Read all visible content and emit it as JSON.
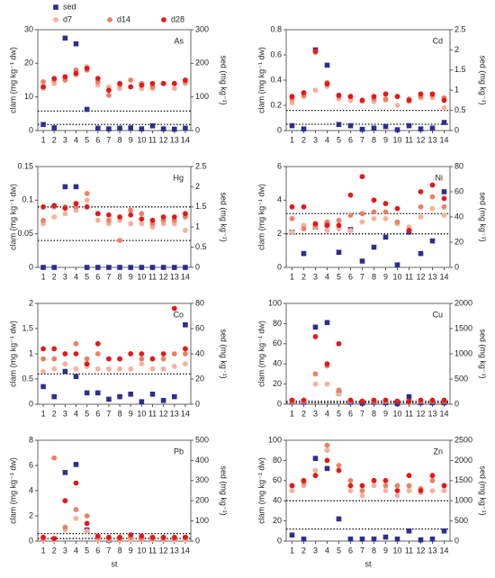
{
  "chart_data": [
    {
      "type": "scatter",
      "label": "As",
      "ylabel": "clam (mg kg⁻¹ dw)",
      "y2label": "sed (mg kg⁻¹)",
      "x": [
        1,
        2,
        3,
        4,
        5,
        6,
        7,
        8,
        9,
        10,
        11,
        12,
        13,
        14
      ],
      "xlim": [
        0.5,
        14.5
      ],
      "xticks": [
        1,
        2,
        3,
        4,
        5,
        6,
        7,
        8,
        9,
        10,
        11,
        12,
        13,
        14
      ],
      "ylim": [
        0,
        30
      ],
      "yticks": [
        0,
        10,
        20,
        30
      ],
      "y2lim": [
        0,
        300
      ],
      "y2ticks": [
        0,
        100,
        200,
        300
      ],
      "series": [
        {
          "name": "sed",
          "color": "#2b2f8f",
          "marker": "square",
          "axis": "y2",
          "values": [
            18,
            8,
            275,
            258,
            63,
            7,
            5,
            7,
            8,
            5,
            14,
            5,
            4,
            7
          ]
        },
        {
          "name": "d7",
          "color": "#f7b09a",
          "marker": "circle",
          "values": [
            12.5,
            14,
            15.5,
            16.5,
            19,
            13.5,
            13,
            12.5,
            13,
            12.5,
            12.5,
            14,
            12.5,
            14
          ]
        },
        {
          "name": "d14",
          "color": "#ef7f62",
          "marker": "circle",
          "values": [
            14.5,
            15,
            15,
            18,
            18,
            14.5,
            10.5,
            13.5,
            15,
            14,
            13,
            14,
            14,
            14.5
          ]
        },
        {
          "name": "d28",
          "color": "#e3191c",
          "marker": "circle",
          "values": [
            13,
            15.5,
            16,
            17,
            18.5,
            15.5,
            12,
            14,
            13,
            13.5,
            14,
            14,
            14,
            15
          ]
        }
      ],
      "hlines": [
        5.8,
        1.8
      ]
    },
    {
      "type": "scatter",
      "label": "Cd",
      "ylabel": "clam (mg kg⁻¹ dw)",
      "y2label": "sed (mg kg⁻¹)",
      "x": [
        1,
        2,
        3,
        4,
        5,
        6,
        7,
        8,
        9,
        10,
        11,
        12,
        13,
        14
      ],
      "xlim": [
        0.5,
        14.5
      ],
      "xticks": [
        1,
        2,
        3,
        4,
        5,
        6,
        7,
        8,
        9,
        10,
        11,
        12,
        13,
        14
      ],
      "ylim": [
        0,
        0.8
      ],
      "yticks": [
        0,
        0.2,
        0.4,
        0.6,
        0.8
      ],
      "y2lim": [
        0,
        2.5
      ],
      "y2ticks": [
        0,
        0.5,
        1,
        1.5,
        2,
        2.5
      ],
      "series": [
        {
          "color": "#2b2f8f",
          "marker": "square",
          "axis": "y2",
          "values": [
            0.12,
            0.04,
            2.0,
            1.62,
            0.15,
            0.12,
            0.03,
            0.06,
            0.1,
            0.02,
            0.12,
            0.04,
            0.06,
            0.2
          ]
        },
        {
          "color": "#f7b09a",
          "marker": "circle",
          "values": [
            0.22,
            0.27,
            0.32,
            0.35,
            0.25,
            0.24,
            0.23,
            0.23,
            0.24,
            0.2,
            0.23,
            0.26,
            0.26,
            0.18
          ]
        },
        {
          "color": "#ef7f62",
          "marker": "circle",
          "values": [
            0.25,
            0.28,
            0.62,
            0.38,
            0.27,
            0.27,
            0.24,
            0.25,
            0.25,
            0.27,
            0.25,
            0.27,
            0.28,
            0.26
          ]
        },
        {
          "color": "#e3191c",
          "marker": "circle",
          "values": [
            0.27,
            0.3,
            0.63,
            0.37,
            0.28,
            0.27,
            0.24,
            0.27,
            0.29,
            0.27,
            0.24,
            0.29,
            0.29,
            0.24
          ]
        }
      ],
      "hlines": [
        0.16,
        0.05
      ]
    },
    {
      "type": "scatter",
      "label": "Hg",
      "ylabel": "clam (mg kg⁻¹ dw)",
      "y2label": "sed (mg kg⁻¹)",
      "x": [
        1,
        2,
        3,
        4,
        5,
        6,
        7,
        8,
        9,
        10,
        11,
        12,
        13,
        14
      ],
      "xlim": [
        0.5,
        14.5
      ],
      "xticks": [
        1,
        2,
        3,
        4,
        5,
        6,
        7,
        8,
        9,
        10,
        11,
        12,
        13,
        14
      ],
      "ylim": [
        0,
        0.15
      ],
      "yticks": [
        0,
        0.05,
        0.1,
        0.15
      ],
      "y2lim": [
        0,
        2.5
      ],
      "y2ticks": [
        0,
        0.5,
        1,
        1.5,
        2,
        2.5
      ],
      "series": [
        {
          "color": "#2b2f8f",
          "marker": "square",
          "axis": "y2",
          "values": [
            0,
            0,
            2.0,
            2.0,
            0,
            0,
            0,
            0,
            0,
            0,
            0,
            0,
            0,
            0
          ]
        },
        {
          "color": "#f7b09a",
          "marker": "circle",
          "values": [
            0.065,
            0.075,
            0.08,
            0.085,
            0.1,
            0.07,
            0.065,
            0.07,
            0.065,
            0.065,
            0.06,
            0.065,
            0.065,
            0.055
          ]
        },
        {
          "color": "#ef7f62",
          "marker": "circle",
          "values": [
            0.07,
            0.09,
            0.09,
            0.09,
            0.11,
            0.08,
            0.07,
            0.04,
            0.085,
            0.08,
            0.065,
            0.07,
            0.07,
            0.075
          ]
        },
        {
          "color": "#e3191c",
          "marker": "circle",
          "values": [
            0.09,
            0.092,
            0.088,
            0.095,
            0.09,
            0.08,
            0.078,
            0.075,
            0.078,
            0.072,
            0.07,
            0.075,
            0.075,
            0.08
          ]
        }
      ],
      "hlines": [
        0.09,
        0.04
      ]
    },
    {
      "type": "scatter",
      "label": "Ni",
      "ylabel": "clam (mg kg⁻¹ dw)",
      "y2label": "sed (mg kg⁻¹)",
      "x": [
        1,
        2,
        3,
        4,
        5,
        6,
        7,
        8,
        9,
        10,
        11,
        12,
        13,
        14
      ],
      "xlim": [
        0.5,
        14.5
      ],
      "xticks": [
        1,
        2,
        3,
        4,
        5,
        6,
        7,
        8,
        9,
        10,
        11,
        12,
        13,
        14
      ],
      "ylim": [
        0,
        6
      ],
      "yticks": [
        0,
        2,
        4,
        6
      ],
      "y2lim": [
        0,
        80
      ],
      "y2ticks": [
        0,
        20,
        40,
        60,
        80
      ],
      "series": [
        {
          "color": "#2b2f8f",
          "marker": "square",
          "axis": "y2",
          "values": [
            28,
            11,
            32,
            34,
            12,
            30,
            5,
            16,
            24,
            2,
            28,
            11,
            21,
            60
          ]
        },
        {
          "color": "#f7b09a",
          "marker": "circle",
          "values": [
            2.1,
            2.5,
            2.4,
            2.2,
            2.3,
            2.2,
            2.7,
            2.9,
            2.9,
            2.6,
            2.4,
            3.0,
            3.5,
            3.1
          ]
        },
        {
          "color": "#ef7f62",
          "marker": "circle",
          "values": [
            2.9,
            2.3,
            2.5,
            2.7,
            2.8,
            3.1,
            3.2,
            3.3,
            3.3,
            2.7,
            2.2,
            3.6,
            4.2,
            3.6
          ]
        },
        {
          "color": "#e3191c",
          "marker": "circle",
          "values": [
            3.6,
            3.6,
            2.6,
            2.5,
            2.5,
            4.3,
            5.4,
            4.0,
            3.8,
            3.5,
            2.2,
            4.5,
            4.9,
            4.1
          ]
        }
      ],
      "hlines": [
        3.2,
        2.0
      ]
    },
    {
      "type": "scatter",
      "label": "Co",
      "ylabel": "clam (mg kg⁻¹ dw)",
      "y2label": "sed (mg kg⁻¹)",
      "x": [
        1,
        2,
        3,
        4,
        5,
        6,
        7,
        8,
        9,
        10,
        11,
        12,
        13,
        14
      ],
      "xlim": [
        0.5,
        14.5
      ],
      "xticks": [
        1,
        2,
        3,
        4,
        5,
        6,
        7,
        8,
        9,
        10,
        11,
        12,
        13,
        14
      ],
      "ylim": [
        0,
        2
      ],
      "yticks": [
        0,
        0.5,
        1,
        1.5,
        2
      ],
      "y2lim": [
        0,
        80
      ],
      "y2ticks": [
        0,
        20,
        40,
        60,
        80
      ],
      "series": [
        {
          "color": "#2b2f8f",
          "marker": "square",
          "axis": "y2",
          "values": [
            14,
            6,
            26,
            22,
            9,
            9,
            4,
            6,
            8,
            2,
            8,
            3,
            6,
            63
          ]
        },
        {
          "color": "#f7b09a",
          "marker": "circle",
          "values": [
            0.65,
            0.7,
            0.8,
            0.7,
            0.75,
            0.7,
            0.7,
            0.7,
            0.7,
            0.8,
            0.7,
            0.7,
            0.75,
            0.8
          ]
        },
        {
          "color": "#ef7f62",
          "marker": "circle",
          "values": [
            0.9,
            0.9,
            1.0,
            1.2,
            0.9,
            1.0,
            0.9,
            0.9,
            1.0,
            0.9,
            0.9,
            0.9,
            1.0,
            1.0
          ]
        },
        {
          "color": "#e3191c",
          "marker": "circle",
          "values": [
            1.1,
            1.1,
            1.0,
            1.0,
            0.8,
            1.2,
            0.9,
            0.9,
            1.0,
            1.0,
            0.9,
            1.0,
            1.9,
            1.1
          ]
        }
      ],
      "hlines": [
        0.6
      ]
    },
    {
      "type": "scatter",
      "label": "Cu",
      "ylabel": "clam (mg kg⁻¹ dw)",
      "y2label": "sed (mg kg⁻¹)",
      "x": [
        1,
        2,
        3,
        4,
        5,
        6,
        7,
        8,
        9,
        10,
        11,
        12,
        13,
        14
      ],
      "xlim": [
        0.5,
        14.5
      ],
      "xticks": [
        1,
        2,
        3,
        4,
        5,
        6,
        7,
        8,
        9,
        10,
        11,
        12,
        13,
        14
      ],
      "ylim": [
        0,
        100
      ],
      "yticks": [
        0,
        20,
        40,
        60,
        80,
        100
      ],
      "y2lim": [
        0,
        2000
      ],
      "y2ticks": [
        0,
        500,
        1000,
        1500,
        2000
      ],
      "series": [
        {
          "color": "#2b2f8f",
          "marker": "square",
          "axis": "y2",
          "values": [
            60,
            40,
            1530,
            1620,
            220,
            40,
            20,
            40,
            30,
            10,
            150,
            30,
            30,
            30
          ]
        },
        {
          "color": "#f7b09a",
          "marker": "circle",
          "values": [
            3,
            3,
            20,
            20,
            10,
            3,
            3,
            3,
            3,
            3,
            3,
            3,
            3,
            3
          ]
        },
        {
          "color": "#ef7f62",
          "marker": "circle",
          "values": [
            3,
            4,
            30,
            38,
            14,
            4,
            3,
            3,
            4,
            3,
            3,
            3,
            3,
            3
          ]
        },
        {
          "color": "#e3191c",
          "marker": "circle",
          "values": [
            4,
            4,
            67,
            40,
            60,
            4,
            3,
            4,
            4,
            3,
            3,
            4,
            4,
            4
          ]
        }
      ],
      "hlines": [
        3,
        1.5
      ]
    },
    {
      "type": "scatter",
      "label": "Pb",
      "ylabel": "clam (mg kg⁻¹ dw)",
      "y2label": "sed (mg kg⁻¹)",
      "xlabel": "st",
      "x": [
        1,
        2,
        3,
        4,
        5,
        6,
        7,
        8,
        9,
        10,
        11,
        12,
        13,
        14
      ],
      "xlim": [
        0.5,
        14.5
      ],
      "xticks": [
        1,
        2,
        3,
        4,
        5,
        6,
        7,
        8,
        9,
        10,
        11,
        12,
        13,
        14
      ],
      "ylim": [
        0,
        8
      ],
      "yticks": [
        0,
        2,
        4,
        6,
        8
      ],
      "y2lim": [
        0,
        500
      ],
      "y2ticks": [
        0,
        100,
        200,
        300,
        400,
        500
      ],
      "series": [
        {
          "color": "#2b2f8f",
          "marker": "square",
          "axis": "y2",
          "values": [
            10,
            10,
            340,
            380,
            55,
            10,
            5,
            10,
            20,
            10,
            15,
            10,
            10,
            15
          ]
        },
        {
          "color": "#f7b09a",
          "marker": "circle",
          "values": [
            0.1,
            0.1,
            0.9,
            1.8,
            0.8,
            0.1,
            0.1,
            0.1,
            0.1,
            0.1,
            0.1,
            0.1,
            0.1,
            0.1
          ]
        },
        {
          "color": "#ef7f62",
          "marker": "circle",
          "values": [
            0.2,
            6.6,
            1.1,
            2.5,
            2.0,
            0.3,
            0.2,
            0.2,
            0.3,
            0.2,
            0.2,
            0.2,
            0.2,
            0.3
          ]
        },
        {
          "color": "#e3191c",
          "marker": "circle",
          "values": [
            0.3,
            0.2,
            3.2,
            4.6,
            1.4,
            0.4,
            0.3,
            0.3,
            0.5,
            0.4,
            0.3,
            0.3,
            0.3,
            0.3
          ]
        }
      ],
      "hlines": [
        0.6,
        0.2
      ]
    },
    {
      "type": "scatter",
      "label": "Zn",
      "ylabel": "clam (mg kg⁻¹ dw)",
      "y2label": "sed (mg kg⁻¹)",
      "xlabel": "st",
      "x": [
        1,
        2,
        3,
        4,
        5,
        6,
        7,
        8,
        9,
        10,
        11,
        12,
        13,
        14
      ],
      "xlim": [
        0.5,
        14.5
      ],
      "xticks": [
        1,
        2,
        3,
        4,
        5,
        6,
        7,
        8,
        9,
        10,
        11,
        12,
        13,
        14
      ],
      "ylim": [
        0,
        100
      ],
      "yticks": [
        0,
        20,
        40,
        60,
        80,
        100
      ],
      "y2lim": [
        0,
        2500
      ],
      "y2ticks": [
        0,
        500,
        1000,
        1500,
        2000,
        2500
      ],
      "series": [
        {
          "color": "#2b2f8f",
          "marker": "square",
          "axis": "y2",
          "values": [
            150,
            50,
            2050,
            1800,
            550,
            50,
            50,
            50,
            100,
            50,
            250,
            30,
            50,
            250
          ]
        },
        {
          "color": "#f7b09a",
          "marker": "circle",
          "values": [
            50,
            55,
            70,
            90,
            70,
            50,
            45,
            55,
            50,
            45,
            50,
            48,
            50,
            50
          ]
        },
        {
          "color": "#ef7f62",
          "marker": "circle",
          "values": [
            55,
            58,
            65,
            95,
            75,
            60,
            50,
            60,
            55,
            55,
            55,
            52,
            60,
            55
          ]
        },
        {
          "color": "#e3191c",
          "marker": "circle",
          "values": [
            55,
            60,
            65,
            80,
            70,
            55,
            55,
            60,
            60,
            50,
            65,
            50,
            65,
            55
          ]
        }
      ],
      "hlines": [
        40,
        12
      ]
    }
  ]
}
